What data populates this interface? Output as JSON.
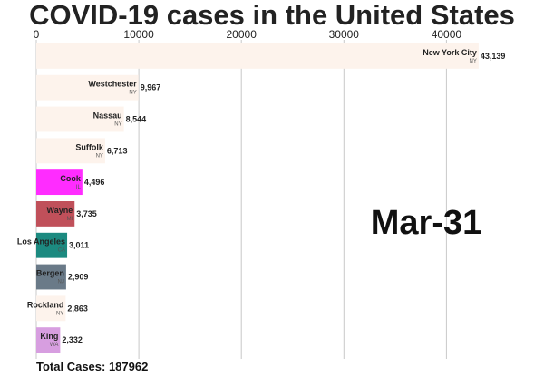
{
  "chart_data": {
    "type": "bar",
    "orientation": "horizontal",
    "title": "COVID-19 cases in the United States",
    "date": "Mar-31",
    "total_label": "Total Cases: 187962",
    "xlim": [
      0,
      45800
    ],
    "xticks": [
      0,
      10000,
      20000,
      30000,
      40000
    ],
    "xtick_labels": [
      "0",
      "10000",
      "20000",
      "30000",
      "40000"
    ],
    "x_axis_position": "top",
    "grid": "vertical",
    "bars": [
      {
        "name": "New York City",
        "state": "NY",
        "value": 43139,
        "value_label": "43,139",
        "color": "#fdf3ec"
      },
      {
        "name": "Westchester",
        "state": "NY",
        "value": 9967,
        "value_label": "9,967",
        "color": "#fdf3ec"
      },
      {
        "name": "Nassau",
        "state": "NY",
        "value": 8544,
        "value_label": "8,544",
        "color": "#fdf3ec"
      },
      {
        "name": "Suffolk",
        "state": "NY",
        "value": 6713,
        "value_label": "6,713",
        "color": "#fdf3ec"
      },
      {
        "name": "Cook",
        "state": "IL",
        "value": 4496,
        "value_label": "4,496",
        "color": "#ff2cff"
      },
      {
        "name": "Wayne",
        "state": "MI",
        "value": 3735,
        "value_label": "3,735",
        "color": "#c0505a"
      },
      {
        "name": "Los Angeles",
        "state": "CA",
        "value": 3011,
        "value_label": "3,011",
        "color": "#1c8a80"
      },
      {
        "name": "Bergen",
        "state": "NJ",
        "value": 2909,
        "value_label": "2,909",
        "color": "#6a7a88"
      },
      {
        "name": "Rockland",
        "state": "NY",
        "value": 2863,
        "value_label": "2,863",
        "color": "#fdf3ec"
      },
      {
        "name": "King",
        "state": "WA",
        "value": 2332,
        "value_label": "2,332",
        "color": "#d79ee0"
      }
    ]
  }
}
